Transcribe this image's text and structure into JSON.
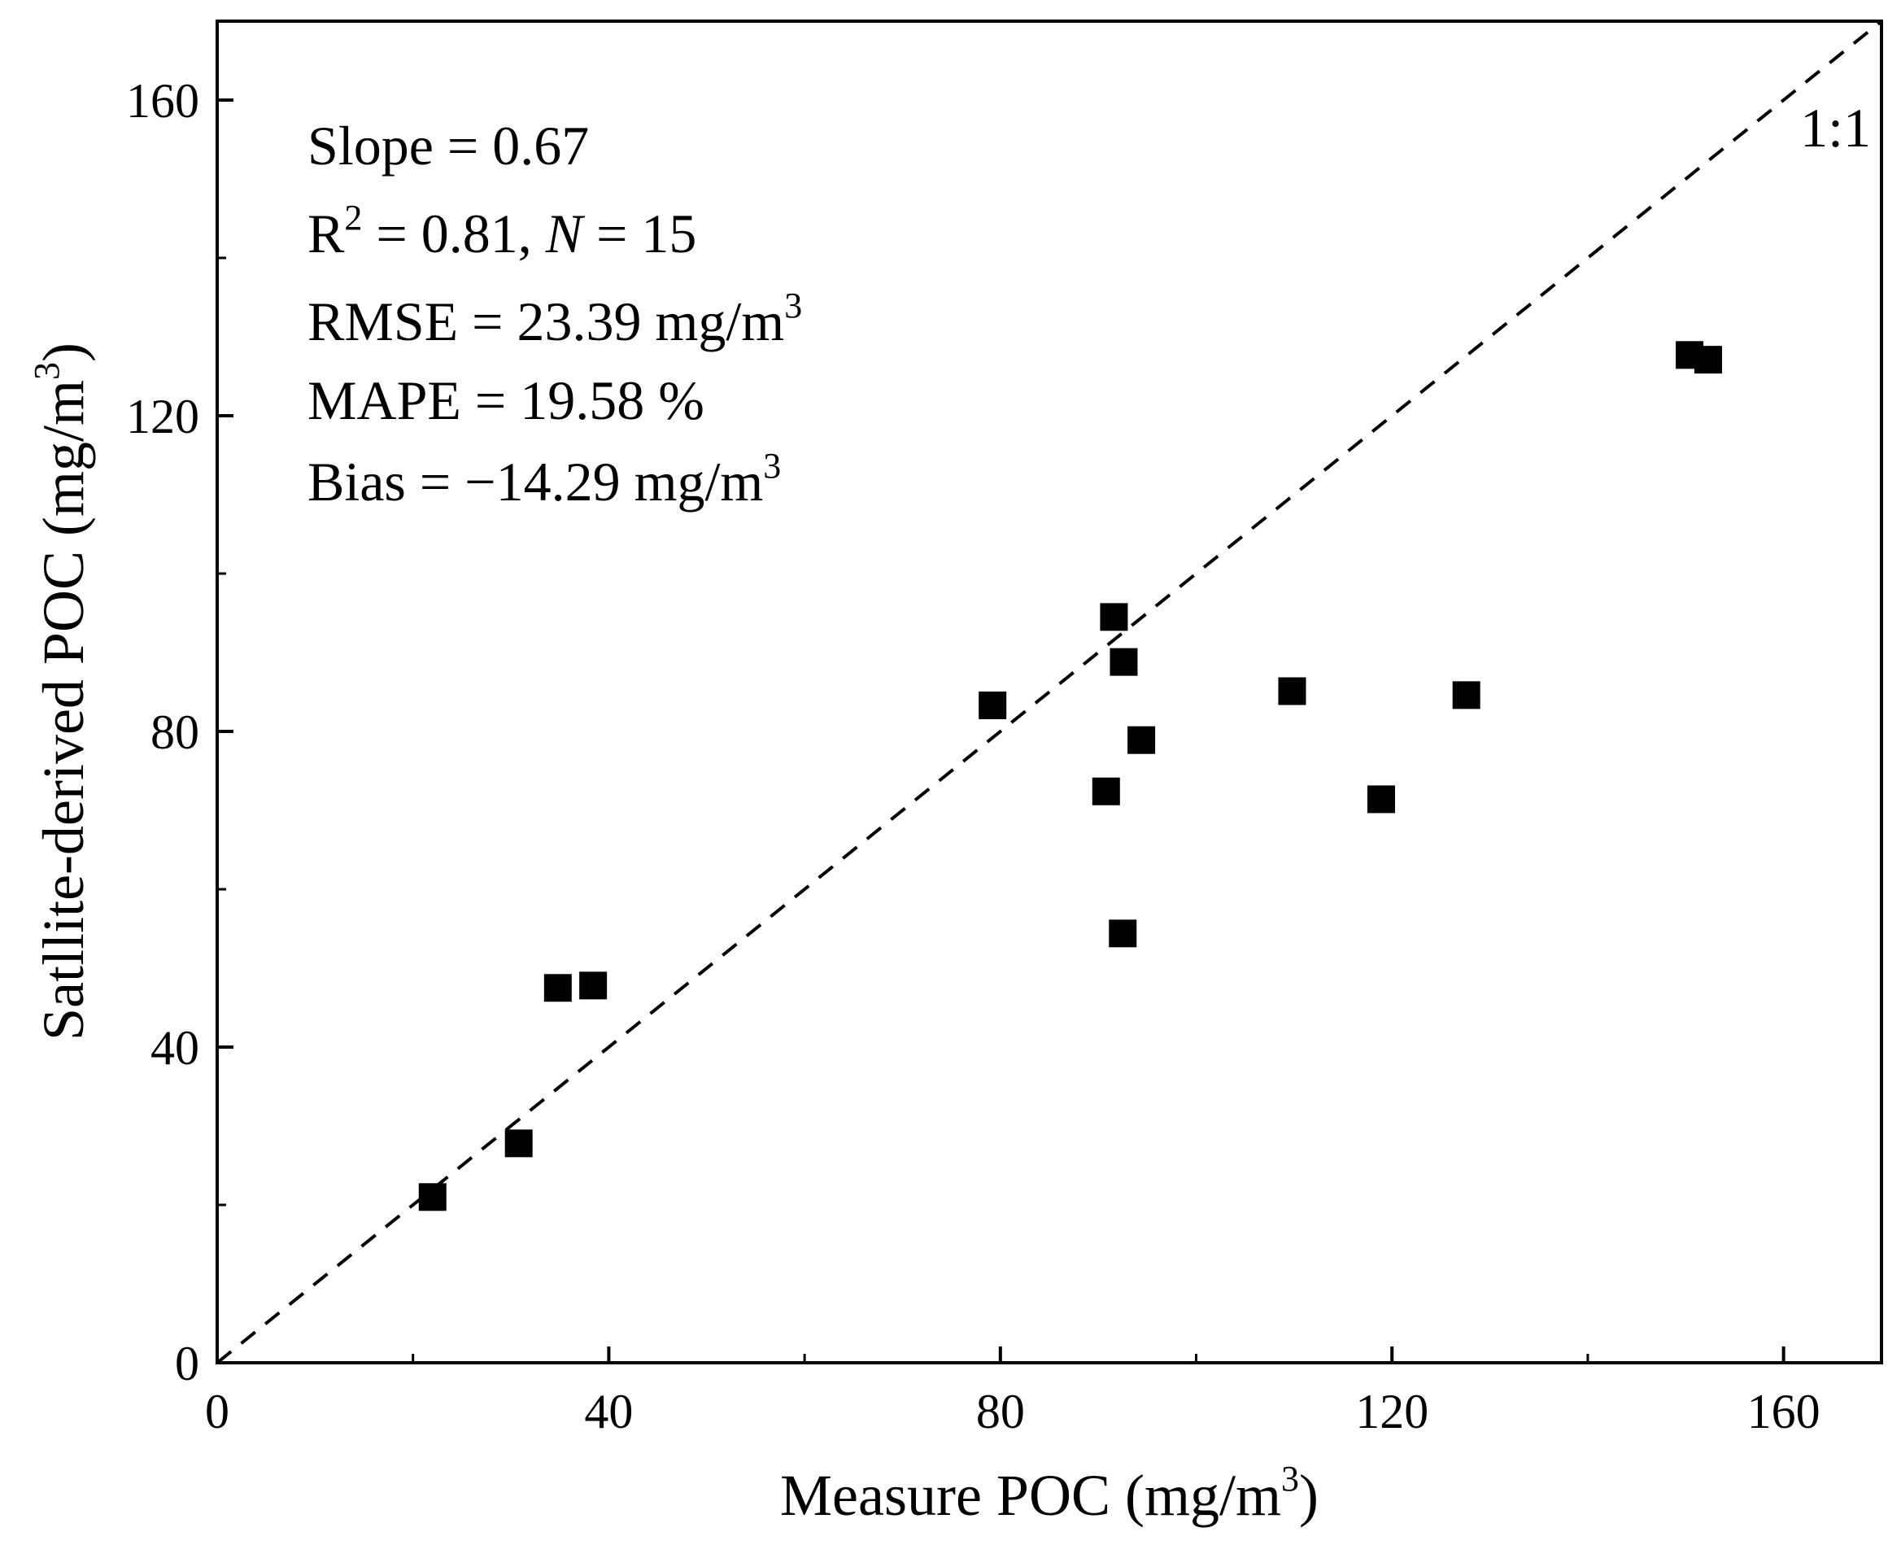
{
  "chart_data": {
    "type": "scatter",
    "xlabel": {
      "main": "Measure POC (mg/m",
      "sup": "3",
      "tail": ")"
    },
    "ylabel": {
      "main": "Satllite-derived POC (mg/m",
      "sup": "3",
      "tail": ")"
    },
    "xlim": [
      0,
      170
    ],
    "ylim": [
      0,
      170
    ],
    "x_ticks": [
      0,
      40,
      80,
      120,
      160
    ],
    "y_ticks": [
      0,
      40,
      80,
      120,
      160
    ],
    "x_minor_ticks": [
      20,
      60,
      100,
      140
    ],
    "y_minor_ticks": [
      20,
      60,
      100,
      140
    ],
    "tick_labels_x": [
      "0",
      "40",
      "80",
      "120",
      "160"
    ],
    "tick_labels_y": [
      "0",
      "40",
      "80",
      "120",
      "160"
    ],
    "grid": false,
    "reference_line": {
      "label": "1:1",
      "style": "dashed",
      "from": [
        0,
        0
      ],
      "to": [
        170,
        170
      ]
    },
    "marker": "square",
    "marker_color": "#000000",
    "points": [
      {
        "x": 22.0,
        "y": 21.0
      },
      {
        "x": 30.8,
        "y": 27.8
      },
      {
        "x": 34.8,
        "y": 47.5
      },
      {
        "x": 38.4,
        "y": 47.8
      },
      {
        "x": 79.2,
        "y": 83.3
      },
      {
        "x": 90.8,
        "y": 72.4
      },
      {
        "x": 91.6,
        "y": 94.5
      },
      {
        "x": 92.6,
        "y": 88.8
      },
      {
        "x": 92.5,
        "y": 54.4
      },
      {
        "x": 94.4,
        "y": 78.9
      },
      {
        "x": 109.8,
        "y": 85.1
      },
      {
        "x": 118.9,
        "y": 71.4
      },
      {
        "x": 127.6,
        "y": 84.6
      },
      {
        "x": 150.4,
        "y": 127.7
      },
      {
        "x": 152.3,
        "y": 127.1
      }
    ],
    "annotations": [
      {
        "main": "Slope = 0.67"
      },
      {
        "main": "R",
        "sup": "2",
        "mid": " = 0.81, ",
        "italic": "N",
        "tail": " = 15"
      },
      {
        "main": "RMSE = 23.39 mg/m",
        "sup": "3"
      },
      {
        "main": "MAPE = 19.58 %"
      },
      {
        "main": "Bias = −14.29 mg/m",
        "sup": "3"
      }
    ]
  }
}
